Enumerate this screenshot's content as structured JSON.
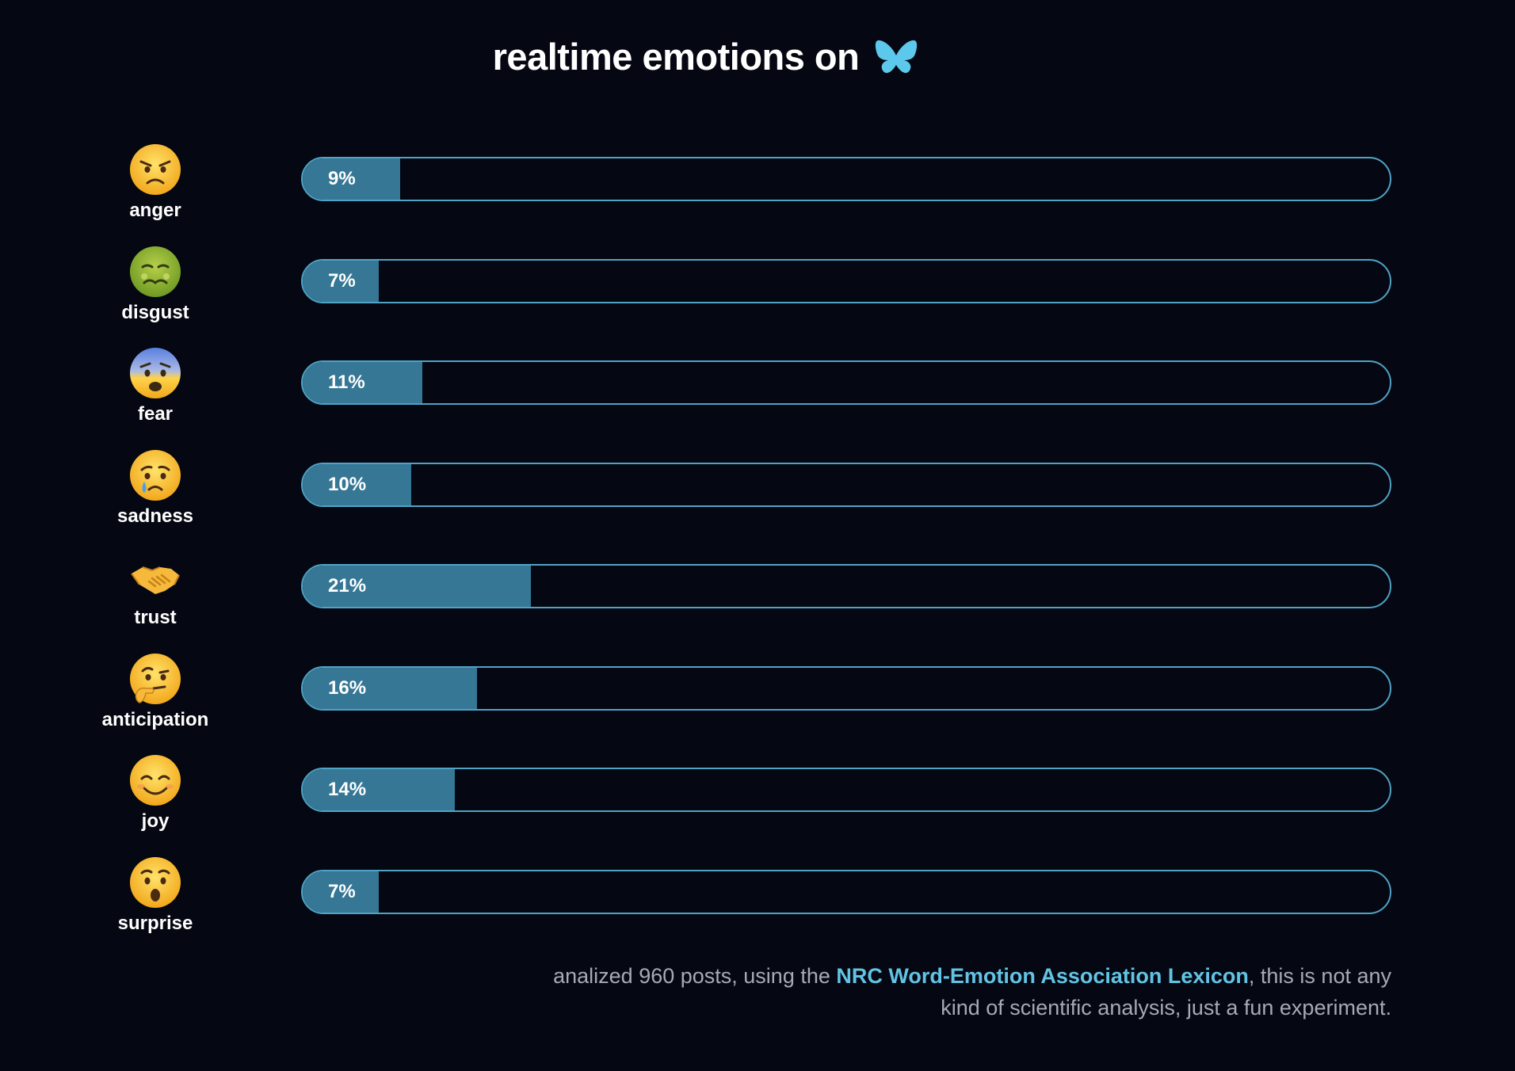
{
  "title": {
    "text": "realtime emotions on",
    "logo_icon": "butterfly-icon",
    "logo_color": "#5cc8ec"
  },
  "colors": {
    "background": "#050812",
    "bar_border": "#4fa3c7",
    "bar_fill": "#357795",
    "link": "#62c3e4",
    "footer_text": "#a6aab3"
  },
  "chart_data": {
    "type": "bar",
    "orientation": "horizontal",
    "unit": "%",
    "xlim": [
      0,
      100
    ],
    "categories": [
      "anger",
      "disgust",
      "fear",
      "sadness",
      "trust",
      "anticipation",
      "joy",
      "surprise"
    ],
    "values": [
      9,
      7,
      11,
      10,
      21,
      16,
      14,
      7
    ],
    "value_labels": [
      "9%",
      "7%",
      "11%",
      "10%",
      "21%",
      "16%",
      "14%",
      "7%"
    ],
    "icons": [
      "angry-face-icon",
      "nauseated-face-icon",
      "anxious-face-icon",
      "crying-face-icon",
      "handshake-icon",
      "thinking-face-icon",
      "smiling-face-icon",
      "surprised-face-icon"
    ]
  },
  "footer": {
    "prefix": "analized 960 posts, using the ",
    "link_text": "NRC Word-Emotion Association Lexicon",
    "suffix": ", this is not any kind of scientific analysis, just a fun experiment."
  }
}
